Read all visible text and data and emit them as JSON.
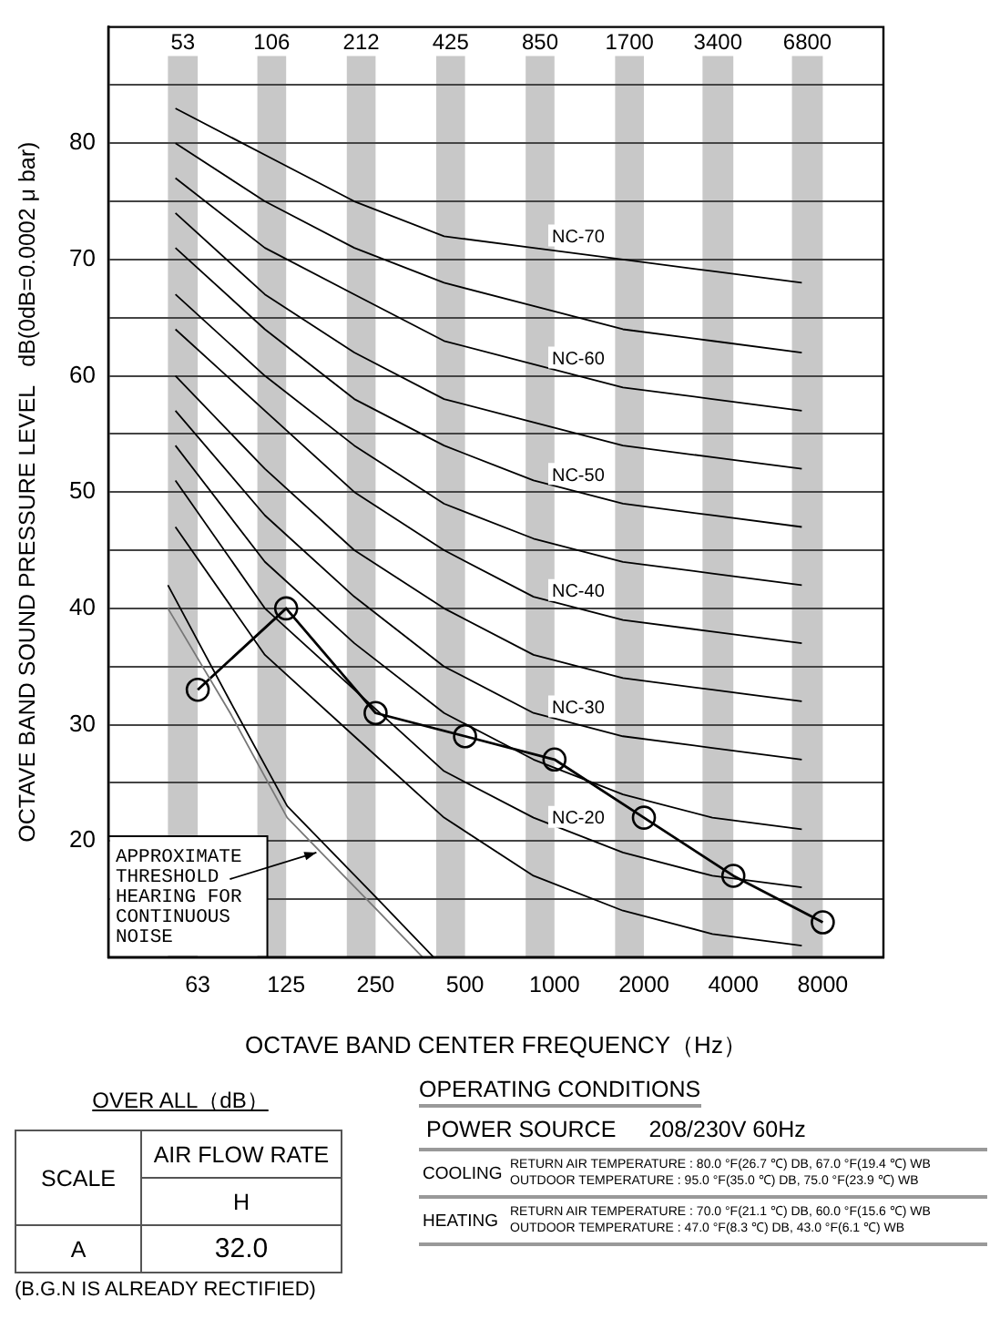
{
  "chart_data": [
    {
      "type": "line",
      "xlabel": "OCTAVE BAND CENTER FREQUENCY（Hz）",
      "ylabel": "OCTAVE BAND SOUND PRESSURE LEVEL   dB(0dB=0.0002 μ bar)",
      "log": "x",
      "xlim": [
        31.5,
        12800
      ],
      "xticks": [
        63,
        125,
        250,
        500,
        1000,
        2000,
        4000,
        8000
      ],
      "ylim": [
        10,
        90
      ],
      "yticks": [
        {
          "value": 15,
          "label": null
        },
        20,
        {
          "value": 25,
          "label": null
        },
        30,
        {
          "value": 35,
          "label": null
        },
        40,
        {
          "value": 45,
          "label": null
        },
        50,
        {
          "value": 55,
          "label": null
        },
        60,
        {
          "value": 65,
          "label": null
        },
        70,
        {
          "value": 75,
          "label": null
        },
        80,
        {
          "value": 85,
          "label": null
        }
      ],
      "grid": "y",
      "marker": "none",
      "series": [
        {
          "name": "NC-70",
          "color": "#000000",
          "x": [
            53,
            106,
            212,
            425,
            850,
            1700,
            3400,
            6800
          ],
          "values": [
            83,
            79,
            75,
            72,
            71,
            70,
            69,
            68
          ]
        },
        {
          "color": "#000000",
          "x": [
            53,
            106,
            212,
            425,
            850,
            1700,
            3400,
            6800
          ],
          "values": [
            80,
            75,
            71,
            68,
            66,
            64,
            63,
            62
          ]
        },
        {
          "name": "NC-60",
          "color": "#000000",
          "x": [
            53,
            106,
            212,
            425,
            850,
            1700,
            3400,
            6800
          ],
          "values": [
            77,
            71,
            67,
            63,
            61,
            59,
            58,
            57
          ]
        },
        {
          "color": "#000000",
          "x": [
            53,
            106,
            212,
            425,
            850,
            1700,
            3400,
            6800
          ],
          "values": [
            74,
            67,
            62,
            58,
            56,
            54,
            53,
            52
          ]
        },
        {
          "name": "NC-50",
          "color": "#000000",
          "x": [
            53,
            106,
            212,
            425,
            850,
            1700,
            3400,
            6800
          ],
          "values": [
            71,
            64,
            58,
            54,
            51,
            49,
            48,
            47
          ]
        },
        {
          "color": "#000000",
          "x": [
            53,
            106,
            212,
            425,
            850,
            1700,
            3400,
            6800
          ],
          "values": [
            67,
            60,
            54,
            49,
            46,
            44,
            43,
            42
          ]
        },
        {
          "name": "NC-40",
          "color": "#000000",
          "x": [
            53,
            106,
            212,
            425,
            850,
            1700,
            3400,
            6800
          ],
          "values": [
            64,
            57,
            50,
            45,
            41,
            39,
            38,
            37
          ]
        },
        {
          "color": "#000000",
          "x": [
            53,
            106,
            212,
            425,
            850,
            1700,
            3400,
            6800
          ],
          "values": [
            60,
            52,
            45,
            40,
            36,
            34,
            33,
            32
          ]
        },
        {
          "name": "NC-30",
          "color": "#000000",
          "x": [
            53,
            106,
            212,
            425,
            850,
            1700,
            3400,
            6800
          ],
          "values": [
            57,
            48,
            41,
            35,
            31,
            29,
            28,
            27
          ]
        },
        {
          "color": "#000000",
          "x": [
            53,
            106,
            212,
            425,
            850,
            1700,
            3400,
            6800
          ],
          "values": [
            54,
            44,
            37,
            31,
            27,
            24,
            22,
            21
          ]
        },
        {
          "name": "NC-20",
          "color": "#000000",
          "x": [
            53,
            106,
            212,
            425,
            850,
            1700,
            3400,
            6800
          ],
          "values": [
            51,
            40,
            33,
            26,
            22,
            19,
            17,
            16
          ]
        },
        {
          "color": "#000000",
          "x": [
            53,
            106,
            212,
            425,
            850,
            1700,
            3400,
            6800
          ],
          "values": [
            47,
            36,
            29,
            22,
            17,
            14,
            12,
            11
          ]
        },
        {
          "color": "#000000",
          "x": [
            50,
            81,
            126,
            254,
            392
          ],
          "values": [
            42,
            32,
            23,
            15,
            10
          ]
        },
        {
          "color": "#777777",
          "x": [
            50,
            81,
            126,
            254,
            360
          ],
          "values": [
            40,
            31,
            22,
            14,
            10
          ]
        },
        {
          "color": "#000000",
          "marker": "circle",
          "x": [
            63,
            125,
            250,
            500,
            1000,
            2000,
            4000,
            8000
          ],
          "values": [
            33,
            40,
            31,
            29,
            27,
            22,
            17,
            13
          ]
        }
      ],
      "bands": [
        {
          "axis": "x",
          "from": 50,
          "to": 63,
          "label": "53",
          "color": "#c8c8c8"
        },
        {
          "axis": "x",
          "from": 100,
          "to": 125,
          "label": "106",
          "color": "#c8c8c8"
        },
        {
          "axis": "x",
          "from": 200,
          "to": 250,
          "label": "212",
          "color": "#c8c8c8"
        },
        {
          "axis": "x",
          "from": 400,
          "to": 500,
          "label": "425",
          "color": "#c8c8c8"
        },
        {
          "axis": "x",
          "from": 800,
          "to": 1000,
          "label": "850",
          "color": "#c8c8c8"
        },
        {
          "axis": "x",
          "from": 1600,
          "to": 2000,
          "label": "1700",
          "color": "#c8c8c8"
        },
        {
          "axis": "x",
          "from": 3150,
          "to": 4000,
          "label": "3400",
          "color": "#c8c8c8"
        },
        {
          "axis": "x",
          "from": 6300,
          "to": 8000,
          "label": "6800",
          "color": "#c8c8c8"
        }
      ],
      "annotations": [
        {
          "text": "APPROXIMATE\nTHRESHOLD\nHEARING FOR\nCONTINUOUS\nNOISE",
          "x": 158,
          "y": 19
        }
      ]
    },
    {
      "type": "other",
      "title": "OVER ALL（dB）",
      "annotations": [
        "SCALE",
        "AIR FLOW RATE",
        "H",
        "A",
        "32.0",
        "(B.G.N IS ALREADY RECTIFIED)"
      ]
    },
    {
      "type": "other",
      "title": "OPERATING CONDITIONS",
      "annotations": [
        "POWER SOURCE",
        "208/230V 60Hz",
        "COOLING",
        "RETURN AIR TEMPERATURE : 80.0 °F(26.7 ℃) DB, 67.0 °F(19.4 ℃) WB",
        "OUTDOOR TEMPERATURE : 95.0 °F(35.0 ℃) DB, 75.0 °F(23.9 ℃) WB",
        "HEATING",
        "RETURN AIR TEMPERATURE : 70.0 °F(21.1 ℃) DB, 60.0 °F(15.6 ℃) WB",
        "OUTDOOR TEMPERATURE : 47.0 °F(8.3 ℃) DB, 43.0 °F(6.1 ℃) WB"
      ]
    }
  ]
}
